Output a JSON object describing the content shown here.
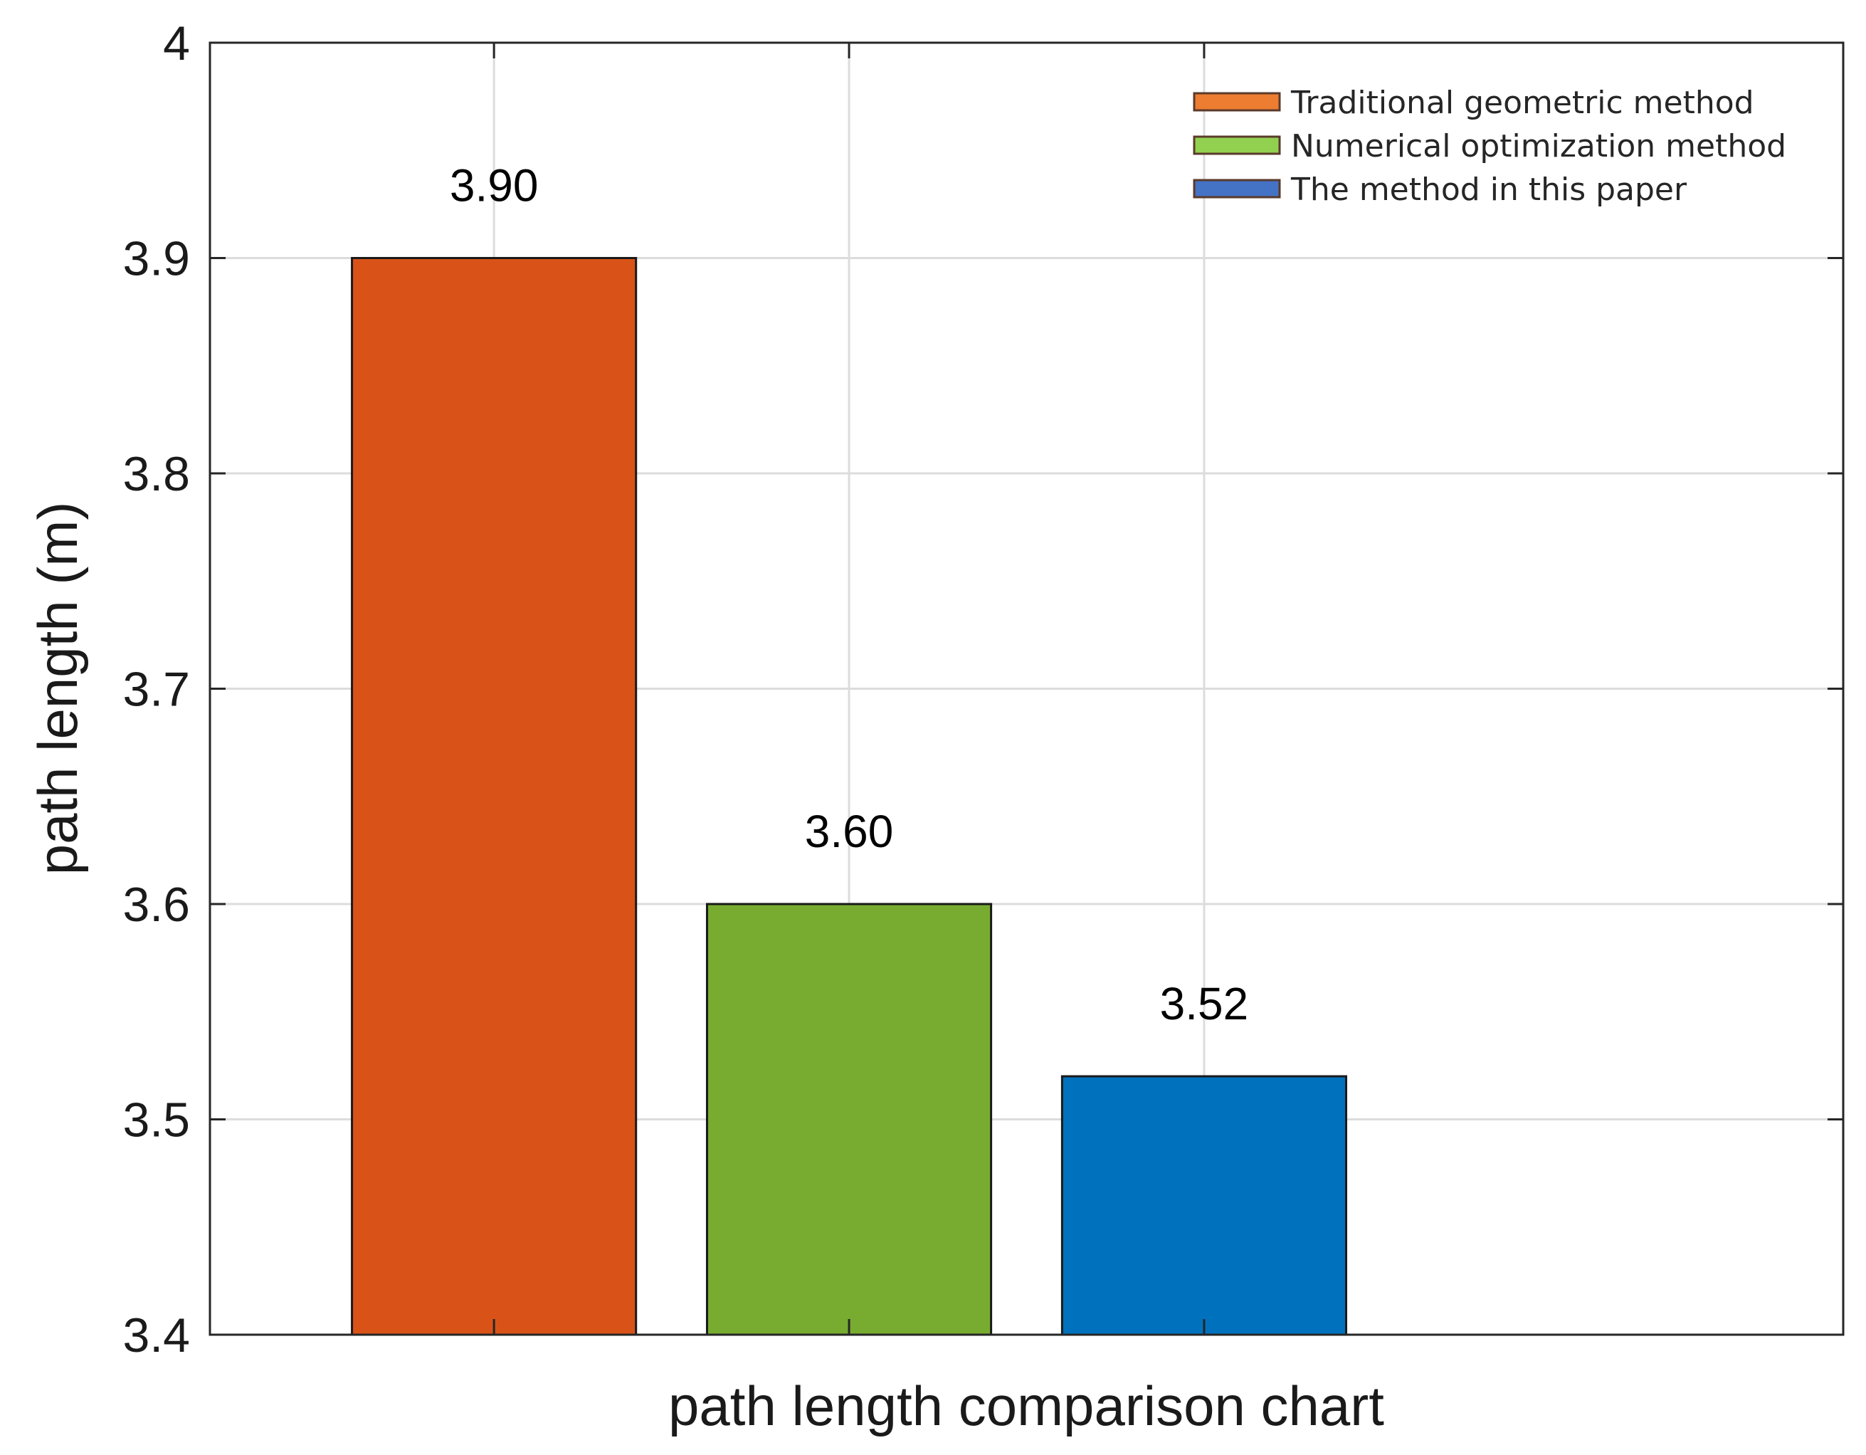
{
  "chart_data": {
    "type": "bar",
    "categories": [
      "Traditional geometric method",
      "Numerical optimization method",
      "The method in this paper"
    ],
    "values": [
      3.9,
      3.6,
      3.52
    ],
    "data_labels": [
      "3.90",
      "3.60",
      "3.52"
    ],
    "bar_colors": [
      "#d95319",
      "#77ac30",
      "#0072bd"
    ],
    "legend_colors": [
      "#ed7d31",
      "#92d050",
      "#4472c4"
    ],
    "title": "",
    "xlabel": "path length comparison chart",
    "ylabel": "path length (m)",
    "ylim": [
      3.4,
      4.0
    ],
    "yticks": [
      3.4,
      3.5,
      3.6,
      3.7,
      3.8,
      3.9,
      4.0
    ],
    "ytick_labels": [
      "3.4",
      "3.5",
      "3.6",
      "3.7",
      "3.8",
      "3.9",
      "4"
    ],
    "grid": true,
    "legend": {
      "placement": "top-right",
      "entries": [
        "Traditional geometric method",
        "Numerical optimization method",
        "The method in this paper"
      ]
    }
  }
}
